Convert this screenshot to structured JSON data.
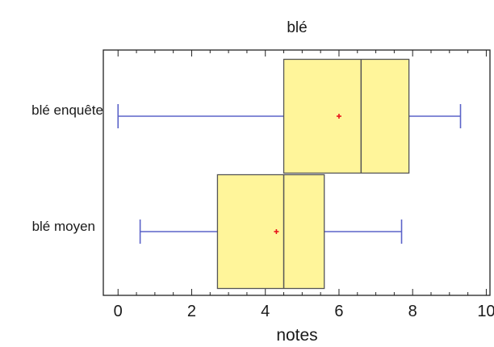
{
  "chart_data": {
    "type": "box",
    "title": "blé",
    "xlabel": "notes",
    "ylabel": "",
    "xlim": [
      -0.4,
      10.1
    ],
    "xticks": [
      0,
      2,
      4,
      6,
      8,
      10
    ],
    "categories": [
      "blé enquête",
      "blé moyen"
    ],
    "boxes": [
      {
        "label": "blé enquête",
        "min": 0.0,
        "q1": 4.5,
        "median": 6.6,
        "mean": 6.0,
        "q3": 7.9,
        "max": 9.3
      },
      {
        "label": "blé moyen",
        "min": 0.6,
        "q1": 2.7,
        "median": 4.5,
        "mean": 4.3,
        "q3": 5.6,
        "max": 7.7
      }
    ],
    "colors": {
      "box_fill": "#fff59a",
      "box_edge": "#555555",
      "whisker": "#5b63c8",
      "mean_marker": "#e8141c"
    },
    "grid": false,
    "legend": "none"
  }
}
